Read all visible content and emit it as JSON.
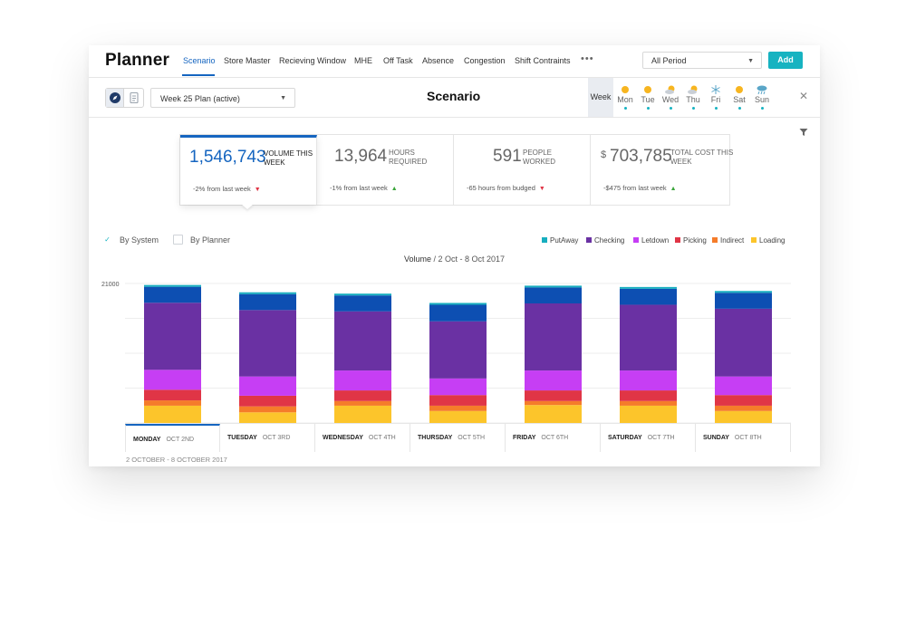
{
  "app": {
    "title": "Planner"
  },
  "nav": {
    "tabs": [
      "Scenario",
      "Store Master",
      "Recieving Window",
      "MHE",
      "Off Task",
      "Absence",
      "Congestion",
      "Shift Contraints"
    ],
    "more": "•••"
  },
  "period": {
    "selected": "All Period"
  },
  "actions": {
    "add_label": "Add"
  },
  "plan": {
    "selected": "Week 25 Plan (active)"
  },
  "page": {
    "title": "Scenario"
  },
  "week": {
    "label": "Week",
    "days": [
      {
        "name": "Mon",
        "weather": "sun-icon"
      },
      {
        "name": "Tue",
        "weather": "sun-icon"
      },
      {
        "name": "Wed",
        "weather": "partly-cloudy-icon"
      },
      {
        "name": "Thu",
        "weather": "partly-cloudy-icon"
      },
      {
        "name": "Fri",
        "weather": "snow-icon"
      },
      {
        "name": "Sat",
        "weather": "sun-icon"
      },
      {
        "name": "Sun",
        "weather": "rain-icon"
      }
    ]
  },
  "kpis": [
    {
      "value": "1,546,743",
      "label": "Volume this week",
      "change": "-2% from last week",
      "trend": "down"
    },
    {
      "value": "13,964",
      "label": "Hours required",
      "change": "-1% from last week",
      "trend": "up"
    },
    {
      "value": "591",
      "label": "People worked",
      "change": "-65 hours from budged",
      "trend": "down"
    },
    {
      "value": "703,785",
      "currency": "$",
      "label": "Total cost this week",
      "change": "-$475 from last week",
      "trend": "up"
    }
  ],
  "toggles": {
    "by_system": "By System",
    "by_planner": "By Planner"
  },
  "chart_data": {
    "type": "bar",
    "stacked": true,
    "title": "Volume",
    "subtitle": "2 Oct - 8 Oct 2017",
    "ymax_label": "21000",
    "ylim": [
      0,
      21000
    ],
    "categories": [
      {
        "day": "MONDAY",
        "date": "OCT 2ND"
      },
      {
        "day": "TUESDAY",
        "date": "OCT 3RD"
      },
      {
        "day": "WEDNESDAY",
        "date": "OCT 4TH"
      },
      {
        "day": "THURSDAY",
        "date": "OCT 5TH"
      },
      {
        "day": "FRIDAY",
        "date": "OCT 6TH"
      },
      {
        "day": "SATURDAY",
        "date": "OCT 7TH"
      },
      {
        "day": "SUNDAY",
        "date": "OCT 8TH"
      }
    ],
    "series": [
      {
        "name": "Loading",
        "color": "#fcc52b",
        "values": [
          2600,
          1600,
          2600,
          1800,
          2700,
          2600,
          1800
        ]
      },
      {
        "name": "Indirect",
        "color": "#f57c2a",
        "values": [
          800,
          900,
          700,
          800,
          600,
          700,
          800
        ]
      },
      {
        "name": "Picking",
        "color": "#e03546",
        "values": [
          1600,
          1600,
          1600,
          1600,
          1600,
          1600,
          1600
        ]
      },
      {
        "name": "Letdown",
        "color": "#c63ef4",
        "values": [
          3000,
          2900,
          3000,
          2500,
          3000,
          3000,
          2800
        ]
      },
      {
        "name": "Checking",
        "color": "#6a31a3",
        "values": [
          10100,
          10000,
          8900,
          8600,
          10100,
          9900,
          10200
        ]
      },
      {
        "name": "PutAway",
        "color": "#0d4fb2",
        "values": [
          2400,
          2400,
          2400,
          2500,
          2400,
          2400,
          2400
        ]
      }
    ],
    "legend_order": [
      "PutAway",
      "Checking",
      "Letdown",
      "Picking",
      "Indirect",
      "Loading"
    ],
    "legend_colors": {
      "PutAway": "#17aebf",
      "Checking": "#6a31a3",
      "Letdown": "#c63ef4",
      "Picking": "#e03546",
      "Indirect": "#f57c2a",
      "Loading": "#fcc52b"
    },
    "cap_color": "#17aebf",
    "legend": "top-right"
  },
  "footer": {
    "range": "2 OCTOBER - 8 OCTOBER 2017"
  },
  "colors": {
    "accent": "#1565c0",
    "button": "#17b3c1"
  }
}
